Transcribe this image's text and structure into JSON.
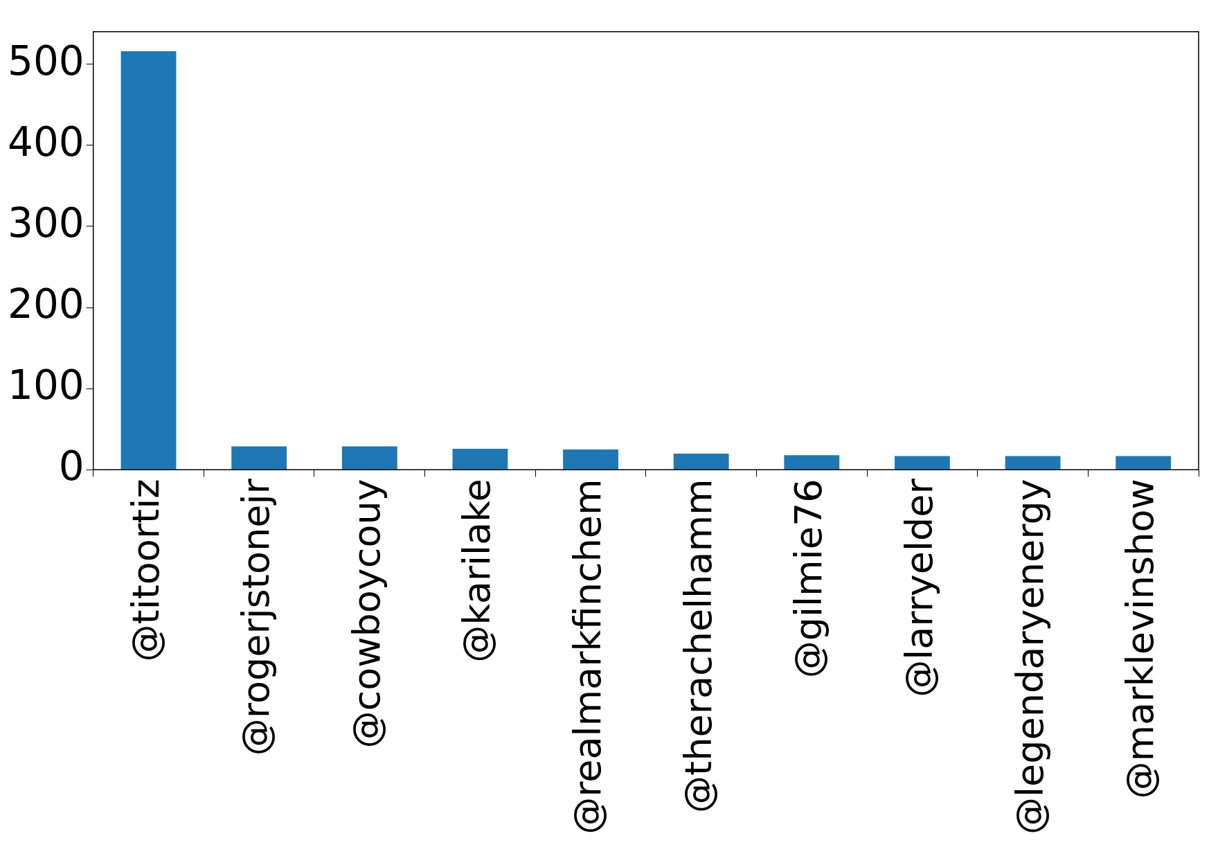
{
  "chart_data": {
    "type": "bar",
    "categories": [
      "@titoortiz",
      "@rogerjstonejr",
      "@cowboycouy",
      "@karilake",
      "@realmarkfinchem",
      "@therachelhamm",
      "@gilmie76",
      "@larryelder",
      "@legendaryenergy",
      "@marklevinshow"
    ],
    "values": [
      516,
      29,
      29,
      26,
      25,
      20,
      18,
      17,
      17,
      17
    ],
    "color": "#1f77b4",
    "ylim": [
      0,
      540
    ],
    "yticks": [
      0,
      100,
      200,
      300,
      400,
      500
    ],
    "grid": false,
    "legend": false
  }
}
